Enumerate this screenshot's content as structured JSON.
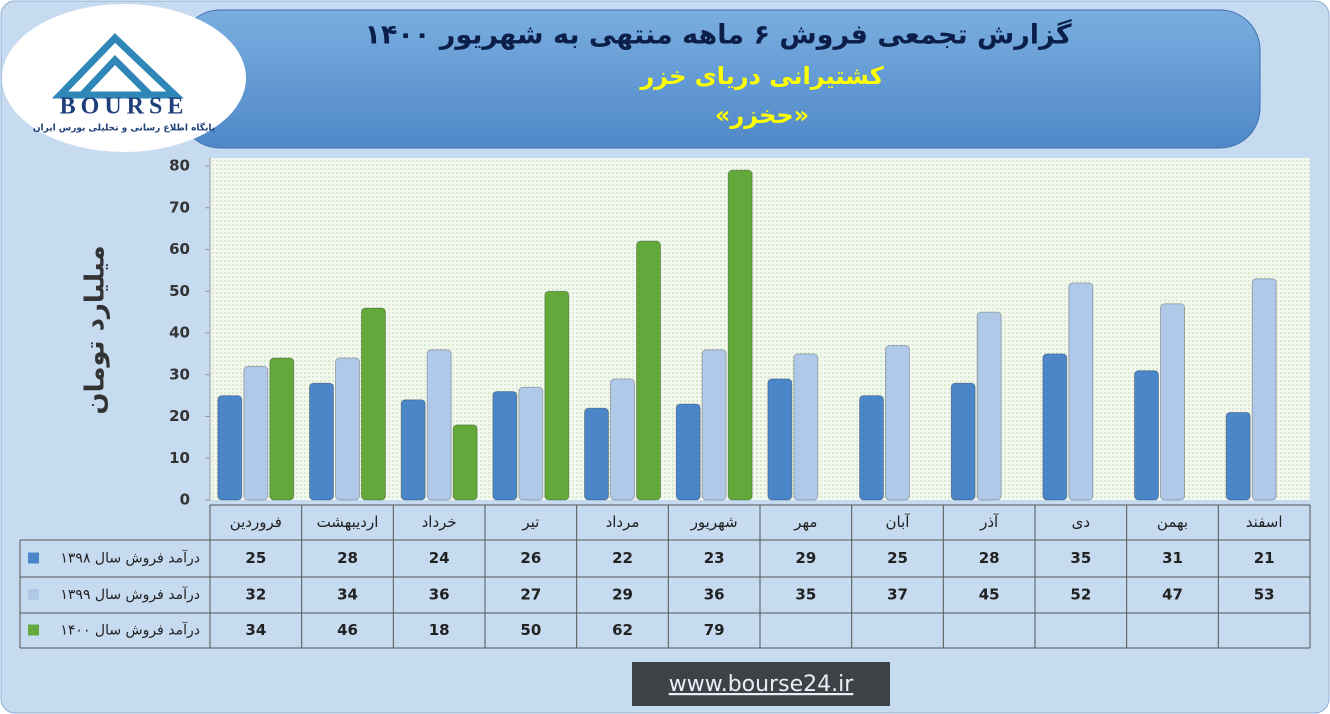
{
  "logo": {
    "brand": "BOURSE",
    "tagline": "پایگاه اطلاع رسانی و تحلیلی بورس ایران"
  },
  "footer": "www.bourse24.ir",
  "chart_data": {
    "type": "bar",
    "title": "گزارش تجمعی فروش ۶ ماهه منتهی به شهریور ۱۴۰۰",
    "subtitle": "کشتیرانی دریای خزر",
    "symbol": "«حخزر»",
    "ylabel": "میلیارد تومان",
    "categories": [
      "فروردین",
      "اردیبهشت",
      "خرداد",
      "تیر",
      "مرداد",
      "شهریور",
      "مهر",
      "آبان",
      "آذر",
      "دی",
      "بهمن",
      "اسفند"
    ],
    "series": [
      {
        "name": "درآمد فروش سال ۱۳۹۸",
        "color": "#4a86c8",
        "values": [
          25,
          28,
          24,
          26,
          22,
          23,
          29,
          25,
          28,
          35,
          31,
          21
        ]
      },
      {
        "name": "درآمد فروش سال ۱۳۹۹",
        "color": "#b0c9e8",
        "values": [
          32,
          34,
          36,
          27,
          29,
          36,
          35,
          37,
          45,
          52,
          47,
          53
        ]
      },
      {
        "name": "درآمد فروش سال ۱۴۰۰",
        "color": "#62a83a",
        "values": [
          34,
          46,
          18,
          50,
          62,
          79,
          null,
          null,
          null,
          null,
          null,
          null
        ]
      }
    ],
    "ylim": [
      0,
      80
    ],
    "yticks": [
      0,
      10,
      20,
      30,
      40,
      50,
      60,
      70,
      80
    ]
  }
}
